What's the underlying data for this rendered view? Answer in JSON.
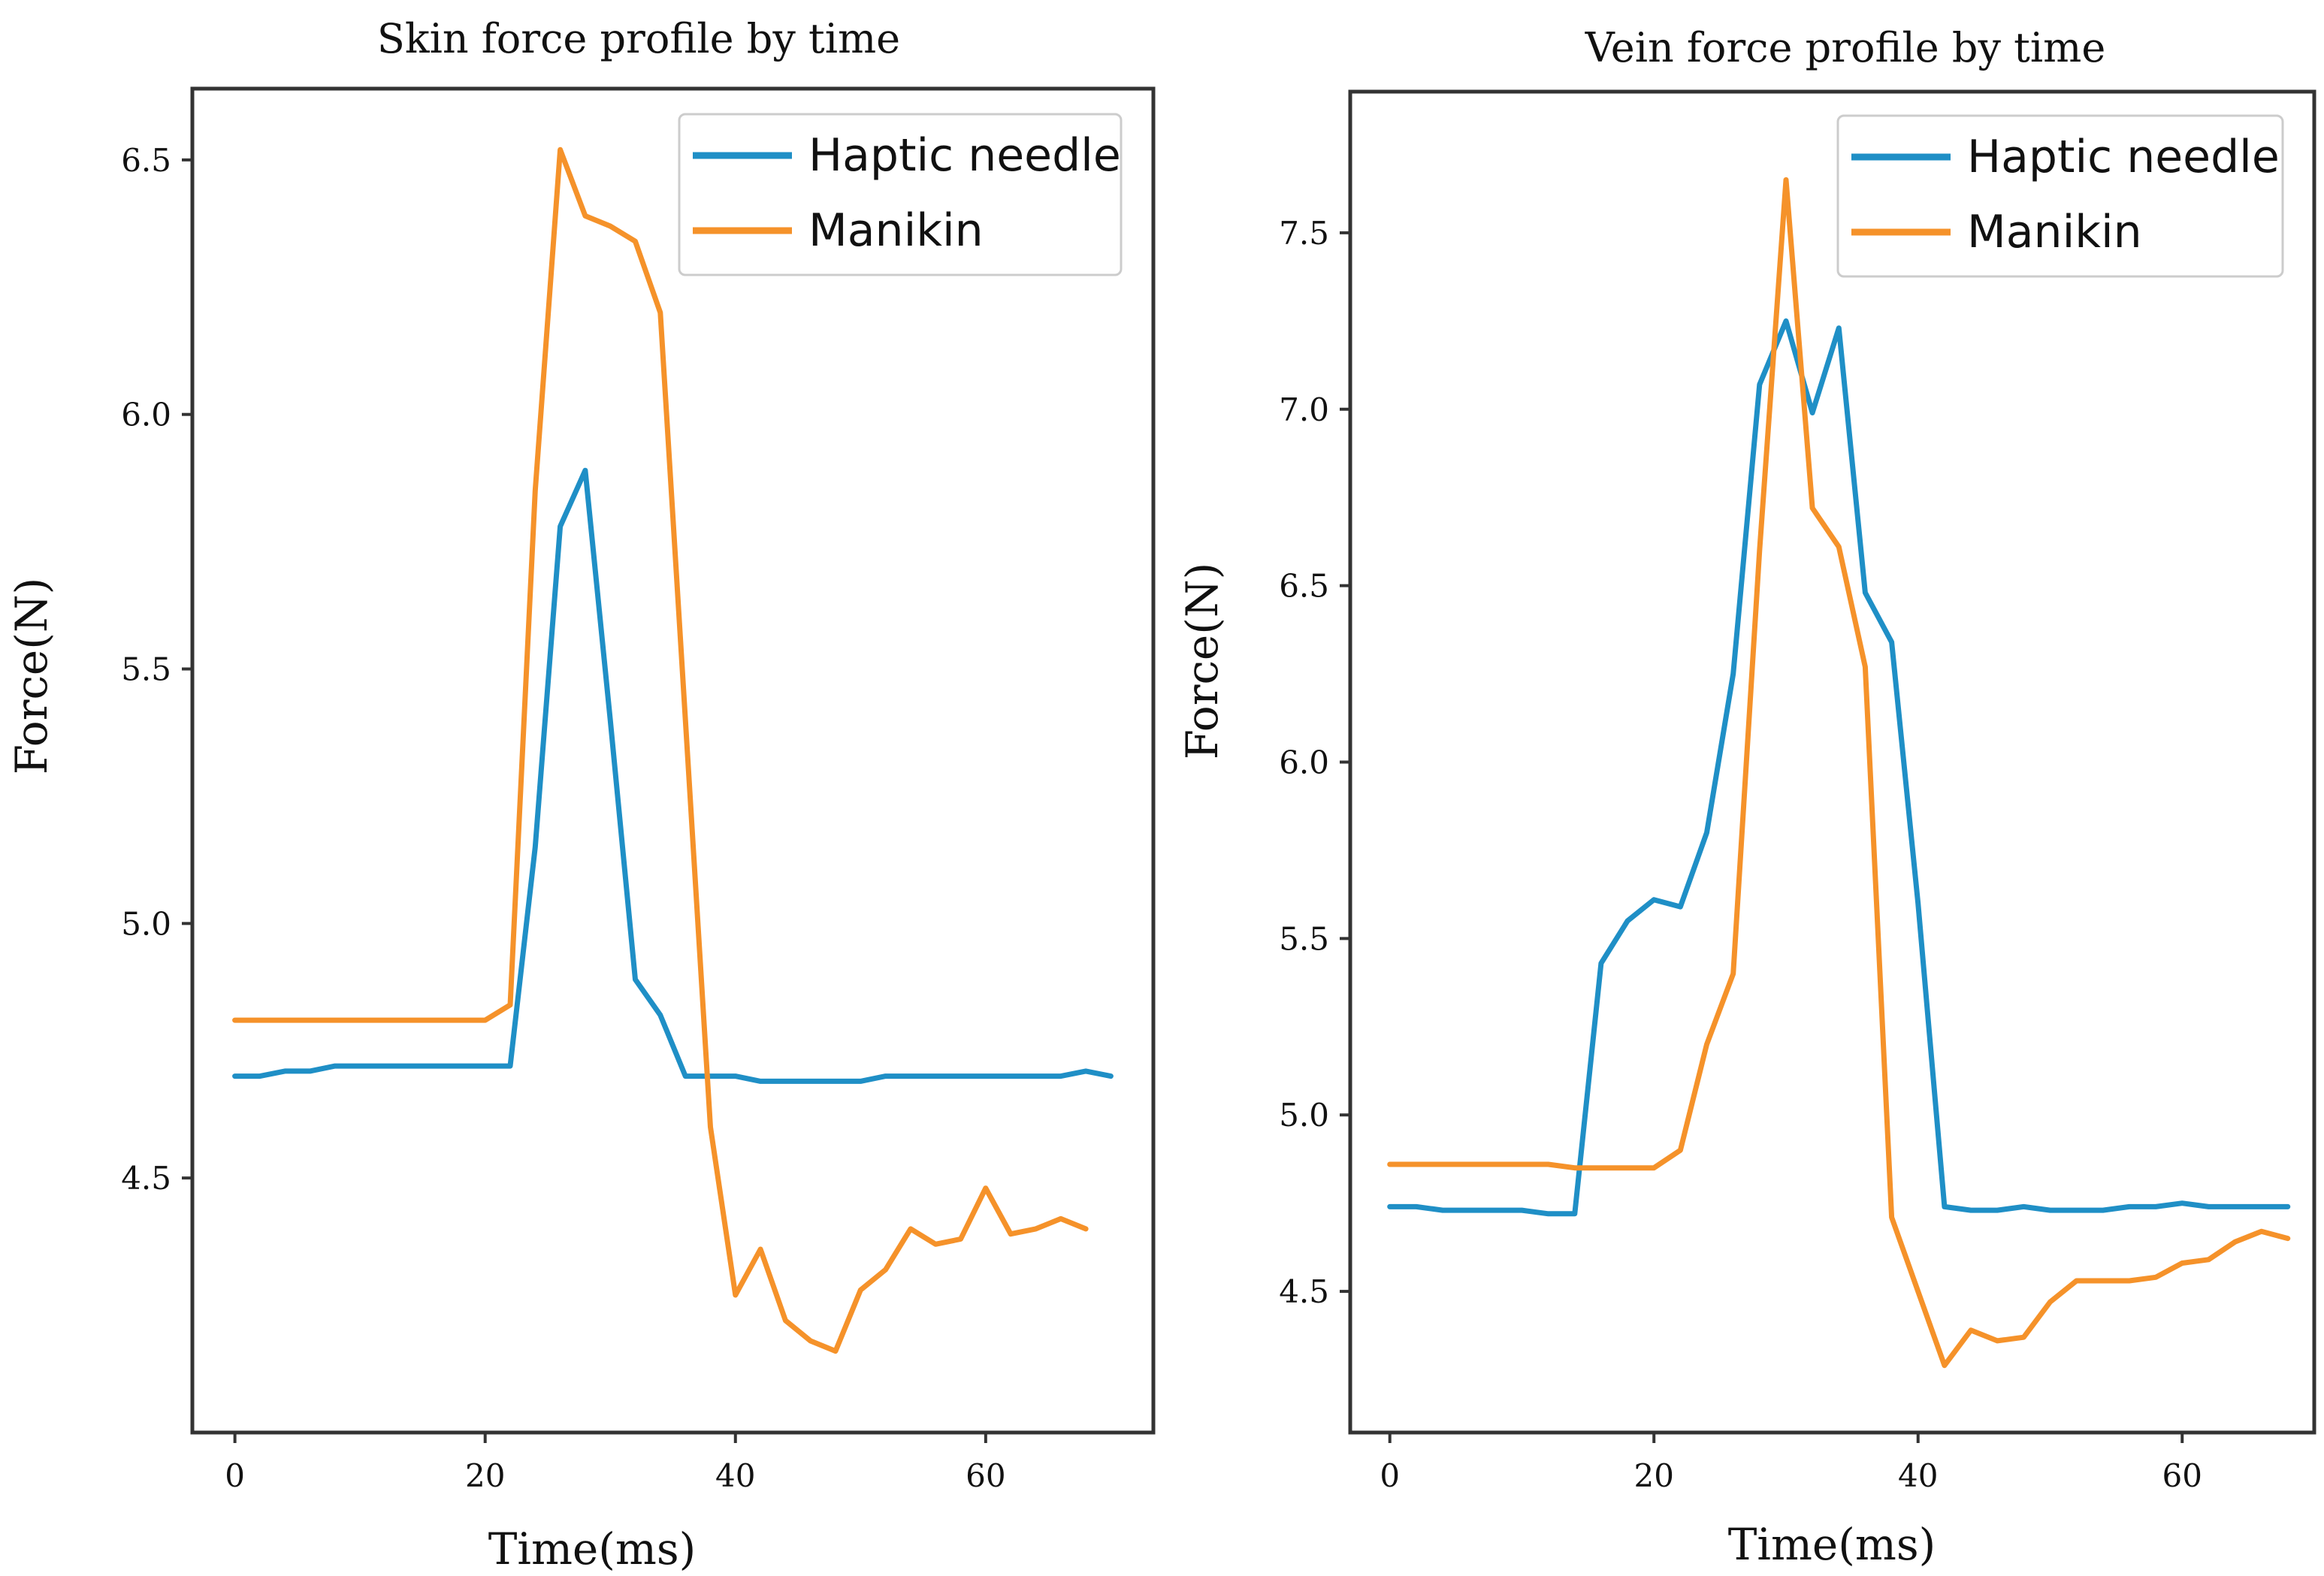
{
  "colors": {
    "haptic": "#1f8fc6",
    "manikin": "#f5922a",
    "frame": "#333333"
  },
  "chart_data": [
    {
      "type": "line",
      "title": "Skin force profile by time",
      "xlabel": "Time(ms)",
      "ylabel": "Force(N)",
      "xlim": [
        -3.4,
        73.4
      ],
      "ylim": [
        4.0,
        6.64
      ],
      "xticks": [
        {
          "value": 0,
          "label": "0"
        },
        {
          "value": 20,
          "label": "20"
        },
        {
          "value": 40,
          "label": "40"
        },
        {
          "value": 60,
          "label": "60"
        }
      ],
      "yticks": [
        {
          "value": 4.5,
          "label": "4.5"
        },
        {
          "value": 5.0,
          "label": "5.0"
        },
        {
          "value": 5.5,
          "label": "5.5"
        },
        {
          "value": 6.0,
          "label": "6.0"
        },
        {
          "value": 6.5,
          "label": "6.5"
        }
      ],
      "legend_position": "top-right",
      "series": [
        {
          "name": "Haptic needle",
          "color": "#1f8fc6",
          "x": [
            0,
            2,
            4,
            6,
            8,
            10,
            12,
            14,
            16,
            18,
            20,
            22,
            24,
            26,
            28,
            30,
            32,
            34,
            36,
            38,
            40,
            42,
            44,
            46,
            48,
            50,
            52,
            54,
            56,
            58,
            60,
            62,
            64,
            66,
            68,
            70
          ],
          "y": [
            4.7,
            4.7,
            4.71,
            4.71,
            4.72,
            4.72,
            4.72,
            4.72,
            4.72,
            4.72,
            4.72,
            4.72,
            5.15,
            5.78,
            5.89,
            5.4,
            4.89,
            4.82,
            4.7,
            4.7,
            4.7,
            4.69,
            4.69,
            4.69,
            4.69,
            4.69,
            4.7,
            4.7,
            4.7,
            4.7,
            4.7,
            4.7,
            4.7,
            4.7,
            4.71,
            4.7
          ]
        },
        {
          "name": "Manikin",
          "color": "#f5922a",
          "x": [
            0,
            2,
            4,
            6,
            8,
            10,
            12,
            14,
            16,
            18,
            20,
            22,
            24,
            26,
            28,
            30,
            32,
            34,
            36,
            38,
            40,
            42,
            44,
            46,
            48,
            50,
            52,
            54,
            56,
            58,
            60,
            62,
            64,
            66,
            68
          ],
          "y": [
            4.81,
            4.81,
            4.81,
            4.81,
            4.81,
            4.81,
            4.81,
            4.81,
            4.81,
            4.81,
            4.81,
            4.84,
            5.85,
            6.52,
            6.39,
            6.37,
            6.34,
            6.2,
            5.4,
            4.6,
            4.27,
            4.36,
            4.22,
            4.18,
            4.16,
            4.28,
            4.32,
            4.4,
            4.37,
            4.38,
            4.48,
            4.39,
            4.4,
            4.42,
            4.4
          ]
        }
      ]
    },
    {
      "type": "line",
      "title": "Vein force profile by time",
      "xlabel": "Time(ms)",
      "ylabel": "Force(N)",
      "xlim": [
        -3.0,
        70.0
      ],
      "ylim": [
        4.1,
        7.9
      ],
      "xticks": [
        {
          "value": 0,
          "label": "0"
        },
        {
          "value": 20,
          "label": "20"
        },
        {
          "value": 40,
          "label": "40"
        },
        {
          "value": 60,
          "label": "60"
        }
      ],
      "yticks": [
        {
          "value": 4.5,
          "label": "4.5"
        },
        {
          "value": 5.0,
          "label": "5.0"
        },
        {
          "value": 5.5,
          "label": "5.5"
        },
        {
          "value": 6.0,
          "label": "6.0"
        },
        {
          "value": 6.5,
          "label": "6.5"
        },
        {
          "value": 7.0,
          "label": "7.0"
        },
        {
          "value": 7.5,
          "label": "7.5"
        }
      ],
      "legend_position": "top-right",
      "series": [
        {
          "name": "Haptic needle",
          "color": "#1f8fc6",
          "x": [
            0,
            2,
            4,
            6,
            8,
            10,
            12,
            14,
            16,
            18,
            20,
            22,
            24,
            26,
            28,
            30,
            32,
            34,
            36,
            38,
            40,
            42,
            44,
            46,
            48,
            50,
            52,
            54,
            56,
            58,
            60,
            62,
            64,
            66,
            68
          ],
          "y": [
            4.74,
            4.74,
            4.73,
            4.73,
            4.73,
            4.73,
            4.72,
            4.72,
            5.43,
            5.55,
            5.61,
            5.59,
            5.8,
            6.25,
            7.07,
            7.25,
            6.99,
            7.23,
            6.48,
            6.34,
            5.6,
            4.74,
            4.73,
            4.73,
            4.74,
            4.73,
            4.73,
            4.73,
            4.74,
            4.74,
            4.75,
            4.74,
            4.74,
            4.74,
            4.74
          ]
        },
        {
          "name": "Manikin",
          "color": "#f5922a",
          "x": [
            0,
            2,
            4,
            6,
            8,
            10,
            12,
            14,
            16,
            18,
            20,
            22,
            24,
            26,
            28,
            30,
            32,
            34,
            36,
            38,
            40,
            42,
            44,
            46,
            48,
            50,
            52,
            54,
            56,
            58,
            60,
            62,
            64,
            66,
            68
          ],
          "y": [
            4.86,
            4.86,
            4.86,
            4.86,
            4.86,
            4.86,
            4.86,
            4.85,
            4.85,
            4.85,
            4.85,
            4.9,
            5.2,
            5.4,
            6.6,
            7.65,
            6.72,
            6.61,
            6.27,
            4.71,
            4.5,
            4.29,
            4.39,
            4.36,
            4.37,
            4.47,
            4.53,
            4.53,
            4.53,
            4.54,
            4.58,
            4.59,
            4.64,
            4.67,
            4.65
          ]
        }
      ]
    }
  ]
}
